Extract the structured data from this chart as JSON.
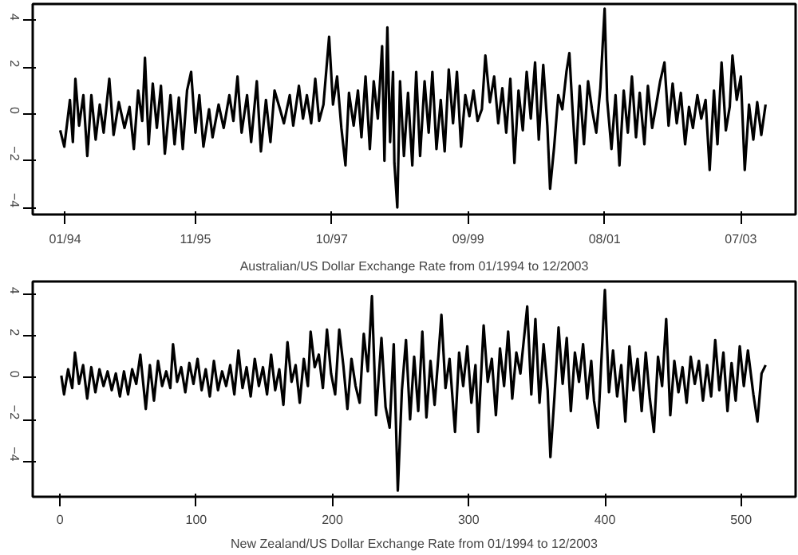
{
  "chart_data": [
    {
      "type": "line",
      "xlabel": "Australian/US Dollar Exchange Rate from 01/1994 to 12/2003",
      "xlim": [
        "1993-07-19",
        "2004-04-07"
      ],
      "ylim": [
        -4.3,
        4.7
      ],
      "xticks": [
        {
          "value": "1994-01-01",
          "label": "01/94"
        },
        {
          "value": "1995-11-01",
          "label": "11/95"
        },
        {
          "value": "1997-10-01",
          "label": "10/97"
        },
        {
          "value": "1999-09-01",
          "label": "09/99"
        },
        {
          "value": "2001-08-01",
          "label": "08/01"
        },
        {
          "value": "2003-07-01",
          "label": "07/03"
        }
      ],
      "yticks": [
        -4,
        -2,
        0,
        2,
        4
      ],
      "grid": false,
      "series": [
        {
          "color": "#000000",
          "x": [
            "1993-12-07",
            "1993-12-28",
            "1994-01-26",
            "1994-02-10",
            "1994-02-23",
            "1994-03-14",
            "1994-04-05",
            "1994-04-25",
            "1994-05-16",
            "1994-06-07",
            "1994-06-28",
            "1994-07-18",
            "1994-08-16",
            "1994-09-07",
            "1994-10-04",
            "1994-11-02",
            "1994-11-28",
            "1994-12-20",
            "1995-01-11",
            "1995-02-01",
            "1995-02-15",
            "1995-03-06",
            "1995-03-27",
            "1995-04-17",
            "1995-05-08",
            "1995-05-28",
            "1995-06-26",
            "1995-07-17",
            "1995-08-08",
            "1995-08-28",
            "1995-09-19",
            "1995-10-10",
            "1995-11-01",
            "1995-11-21",
            "1995-12-12",
            "1996-01-10",
            "1996-01-28",
            "1996-02-28",
            "1996-03-25",
            "1996-04-23",
            "1996-05-14",
            "1996-06-04",
            "1996-06-25",
            "1996-07-23",
            "1996-08-13",
            "1996-09-11",
            "1996-10-02",
            "1996-10-28",
            "1996-11-20",
            "1996-12-11",
            "1997-01-08",
            "1997-01-28",
            "1997-02-27",
            "1997-03-17",
            "1997-04-15",
            "1997-05-06",
            "1997-05-26",
            "1997-06-17",
            "1997-07-08",
            "1997-07-28",
            "1997-08-19",
            "1997-09-17",
            "1997-10-07",
            "1997-10-28",
            "1997-11-19",
            "1997-12-10",
            "1997-12-28",
            "1998-01-21",
            "1998-02-12",
            "1998-03-02",
            "1998-03-23",
            "1998-04-14",
            "1998-05-04",
            "1998-05-25",
            "1998-06-16",
            "1998-06-28",
            "1998-07-13",
            "1998-07-27",
            "1998-08-11",
            "1998-08-18",
            "1998-09-02",
            "1998-09-16",
            "1998-10-06",
            "1998-10-27",
            "1998-11-18",
            "1998-12-08",
            "1998-12-28",
            "1999-01-20",
            "1999-02-10",
            "1999-03-01",
            "1999-03-22",
            "1999-04-13",
            "1999-05-03",
            "1999-05-24",
            "1999-06-15",
            "1999-07-05",
            "1999-07-26",
            "1999-08-17",
            "1999-09-07",
            "1999-09-28",
            "1999-10-19",
            "1999-11-10",
            "1999-11-28",
            "1999-12-21",
            "2000-01-12",
            "2000-02-02",
            "2000-02-23",
            "2000-03-14",
            "2000-04-04",
            "2000-04-25",
            "2000-05-16",
            "2000-06-07",
            "2000-06-27",
            "2000-07-18",
            "2000-08-09",
            "2000-08-28",
            "2000-09-20",
            "2000-10-11",
            "2000-10-25",
            "2000-11-15",
            "2000-12-06",
            "2000-12-27",
            "2001-01-17",
            "2001-02-01",
            "2001-02-15",
            "2001-03-06",
            "2001-03-26",
            "2001-04-17",
            "2001-05-08",
            "2001-05-28",
            "2001-06-19",
            "2001-07-10",
            "2001-08-01",
            "2001-08-14",
            "2001-09-05",
            "2001-09-26",
            "2001-10-16",
            "2001-11-07",
            "2001-11-28",
            "2001-12-19",
            "2002-01-09",
            "2002-01-28",
            "2002-02-21",
            "2002-03-11",
            "2002-04-02",
            "2002-04-23",
            "2002-05-13",
            "2002-06-04",
            "2002-06-25",
            "2002-07-16",
            "2002-08-06",
            "2002-08-27",
            "2002-09-18",
            "2002-10-08",
            "2002-10-28",
            "2002-11-20",
            "2002-12-10",
            "2003-01-01",
            "2003-01-22",
            "2003-02-13",
            "2003-03-03",
            "2003-03-24",
            "2003-04-15",
            "2003-05-05",
            "2003-05-19",
            "2003-06-10",
            "2003-07-01",
            "2003-07-21",
            "2003-08-12",
            "2003-09-03",
            "2003-09-23",
            "2003-10-14",
            "2003-11-05"
          ],
          "values": [
            -0.7,
            -1.4,
            0.6,
            -1.2,
            1.5,
            -0.5,
            0.8,
            -1.8,
            0.8,
            -1.1,
            0.4,
            -0.8,
            1.5,
            -0.9,
            0.5,
            -0.6,
            0.3,
            -1.5,
            1.0,
            -0.3,
            2.4,
            -1.3,
            1.3,
            -0.6,
            1.2,
            -1.7,
            0.8,
            -1.3,
            0.7,
            -1.5,
            1.0,
            1.8,
            -0.8,
            0.8,
            -1.4,
            0.2,
            -1.0,
            0.4,
            -0.6,
            0.8,
            -0.3,
            1.6,
            -0.8,
            0.8,
            -1.2,
            1.4,
            -1.6,
            0.6,
            -1.2,
            1.0,
            0.2,
            -0.4,
            0.8,
            -0.5,
            1.2,
            -0.2,
            0.8,
            -0.4,
            1.5,
            -0.3,
            0.4,
            3.3,
            0.4,
            1.6,
            -0.6,
            -2.2,
            0.9,
            -0.5,
            1.0,
            -1.0,
            1.6,
            -1.5,
            1.4,
            -0.2,
            2.9,
            -2.0,
            3.7,
            -1.2,
            1.8,
            -2.1,
            -4.0,
            1.4,
            -1.8,
            0.9,
            -2.2,
            1.8,
            -1.8,
            1.4,
            -0.8,
            1.8,
            -1.5,
            0.6,
            -1.6,
            1.9,
            -0.4,
            1.8,
            -1.4,
            0.8,
            -0.1,
            1.0,
            -0.3,
            0.2,
            2.5,
            0.5,
            1.6,
            -0.4,
            1.1,
            -0.8,
            1.5,
            -2.1,
            1.0,
            -0.7,
            1.8,
            -0.2,
            2.2,
            -1.1,
            2.1,
            -0.5,
            -3.2,
            -1.4,
            0.8,
            0.2,
            1.8,
            2.6,
            0.5,
            -2.1,
            1.2,
            -1.3,
            1.4,
            0.2,
            -0.8,
            1.1,
            4.5,
            0.6,
            -1.5,
            0.8,
            -2.2,
            1.0,
            -0.8,
            1.6,
            -1.0,
            0.9,
            -1.3,
            1.2,
            -0.6,
            0.4,
            1.4,
            2.2,
            -0.5,
            1.3,
            -0.4,
            0.9,
            -1.3,
            0.3,
            -0.6,
            0.8,
            -0.2,
            0.6,
            -2.4,
            1.0,
            -1.3,
            2.2,
            -0.7,
            0.3,
            2.5,
            0.6,
            1.6,
            -2.4,
            0.4,
            -1.1,
            0.5,
            -0.9,
            0.4
          ]
        }
      ]
    },
    {
      "type": "line",
      "xlabel": "New Zealand/US Dollar Exchange Rate from 01/1994 to 12/2003",
      "xlim": [
        -20,
        540
      ],
      "ylim": [
        -5.7,
        4.6
      ],
      "xticks": [
        0,
        100,
        200,
        300,
        400,
        500
      ],
      "yticks": [
        -4,
        -2,
        0,
        2,
        4
      ],
      "grid": false,
      "series": [
        {
          "color": "#000000",
          "x": [
            1,
            3,
            6,
            9,
            11,
            14,
            17,
            20,
            23,
            26,
            29,
            32,
            35,
            38,
            41,
            44,
            47,
            50,
            53,
            56,
            59,
            61,
            63,
            66,
            69,
            72,
            75,
            78,
            81,
            83,
            86,
            89,
            92,
            95,
            98,
            101,
            104,
            107,
            110,
            113,
            116,
            119,
            122,
            125,
            128,
            131,
            134,
            137,
            140,
            143,
            146,
            149,
            152,
            155,
            158,
            161,
            164,
            167,
            170,
            173,
            176,
            179,
            182,
            184,
            187,
            190,
            193,
            196,
            199,
            202,
            205,
            208,
            211,
            214,
            217,
            220,
            223,
            226,
            229,
            232,
            236,
            239,
            242,
            245,
            248,
            251,
            254,
            257,
            260,
            263,
            266,
            269,
            272,
            275,
            278,
            280,
            283,
            286,
            290,
            293,
            296,
            299,
            302,
            305,
            307,
            311,
            314,
            317,
            320,
            323,
            326,
            329,
            332,
            335,
            338,
            343,
            346,
            349,
            352,
            355,
            358,
            360,
            363,
            366,
            369,
            372,
            375,
            378,
            381,
            384,
            387,
            390,
            392,
            395,
            400,
            403,
            406,
            409,
            412,
            415,
            418,
            421,
            424,
            427,
            430,
            433,
            436,
            439,
            442,
            445,
            448,
            451,
            454,
            457,
            460,
            463,
            466,
            469,
            472,
            475,
            478,
            481,
            484,
            487,
            490,
            493,
            496,
            499,
            502,
            505,
            509,
            512,
            515,
            518
          ],
          "values": [
            0.1,
            -0.8,
            0.4,
            -0.5,
            1.2,
            -0.3,
            0.6,
            -1.0,
            0.5,
            -0.7,
            0.4,
            -0.4,
            0.3,
            -0.6,
            0.2,
            -0.9,
            0.3,
            -0.8,
            0.4,
            -0.3,
            1.1,
            -0.2,
            -1.5,
            0.6,
            -1.1,
            0.8,
            -0.4,
            0.3,
            -0.5,
            1.6,
            -0.2,
            0.5,
            -0.7,
            0.7,
            -0.3,
            0.9,
            -0.6,
            0.4,
            -0.9,
            0.8,
            -0.6,
            0.3,
            -0.4,
            0.6,
            -0.8,
            1.3,
            -0.5,
            0.5,
            -0.9,
            0.9,
            -0.4,
            0.5,
            -0.8,
            1.1,
            -0.6,
            0.4,
            -1.3,
            1.7,
            -0.2,
            0.6,
            -1.2,
            0.9,
            -0.4,
            2.2,
            0.5,
            1.1,
            -0.5,
            2.3,
            0.2,
            -0.8,
            2.3,
            0.6,
            -1.5,
            0.9,
            -0.4,
            -1.2,
            2.1,
            0.3,
            3.9,
            -1.8,
            1.9,
            -1.4,
            -2.4,
            1.6,
            -5.4,
            -0.6,
            1.8,
            -2.0,
            1.0,
            -1.6,
            2.2,
            -1.9,
            0.8,
            -1.3,
            1.2,
            3.0,
            -0.5,
            0.9,
            -2.6,
            1.2,
            -0.4,
            1.5,
            -1.2,
            0.6,
            -2.6,
            2.5,
            -0.2,
            0.9,
            -1.8,
            1.4,
            -0.4,
            2.2,
            -1.0,
            1.2,
            0.2,
            3.4,
            -0.8,
            2.8,
            -1.2,
            1.6,
            -0.6,
            -3.8,
            -0.9,
            2.4,
            -0.3,
            1.9,
            -1.6,
            1.2,
            -0.2,
            1.6,
            -1.0,
            0.8,
            -1.1,
            -2.4,
            4.2,
            -0.7,
            1.3,
            -0.9,
            0.6,
            -2.1,
            1.5,
            -0.6,
            0.9,
            -1.6,
            1.2,
            -1.0,
            -2.6,
            1.0,
            -0.4,
            2.8,
            -1.8,
            0.8,
            -0.7,
            0.5,
            -1.2,
            1.0,
            -0.3,
            0.8,
            -1.1,
            0.6,
            -0.9,
            1.8,
            -0.6,
            1.2,
            -1.6,
            0.7,
            -1.1,
            1.5,
            -0.4,
            1.3,
            -0.8,
            -2.1,
            0.2,
            0.6
          ]
        }
      ]
    }
  ]
}
